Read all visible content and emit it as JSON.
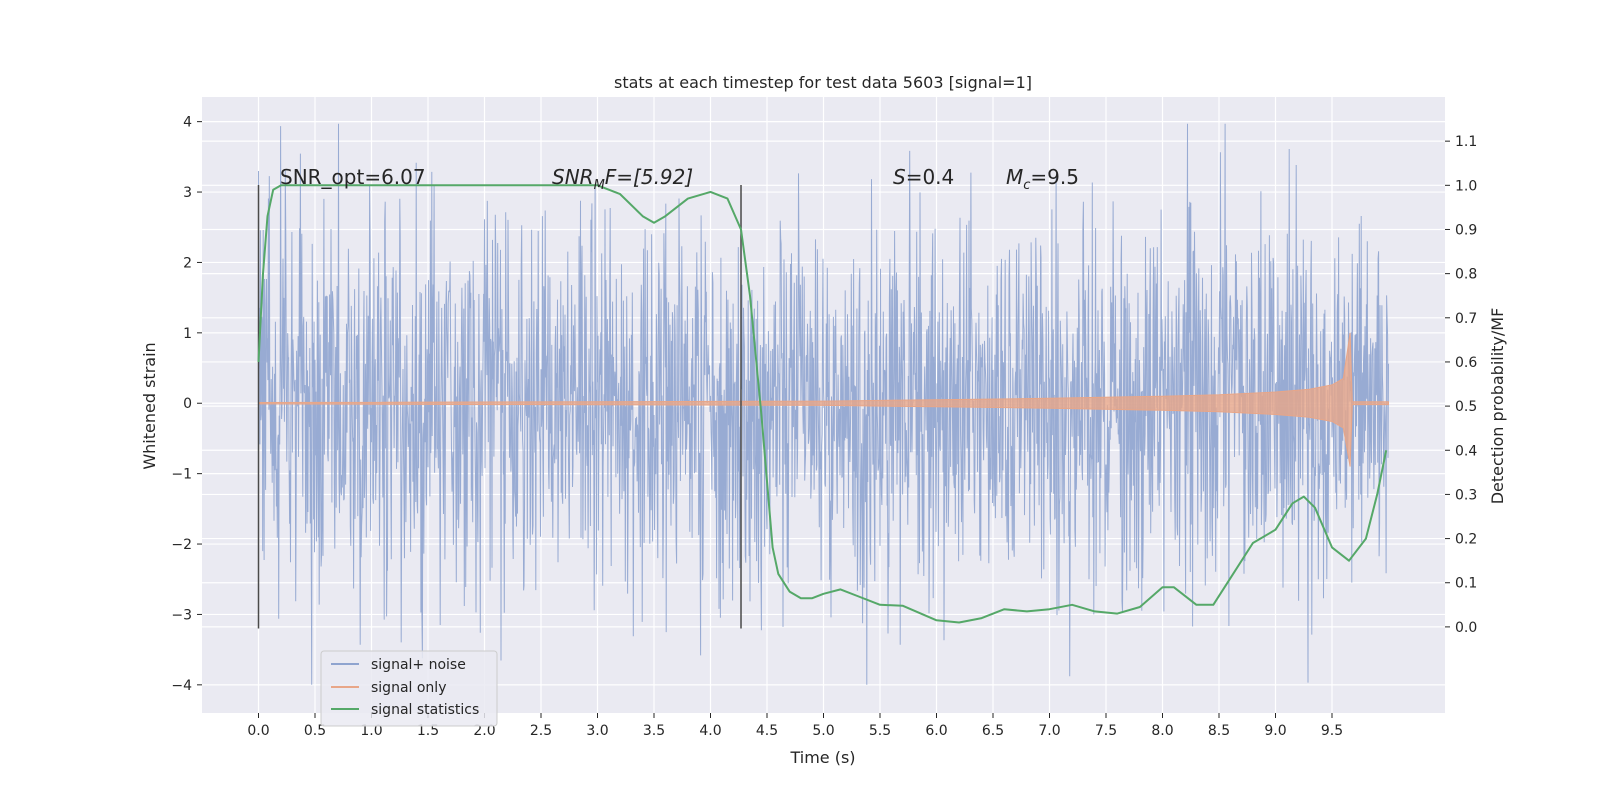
{
  "chart_data": {
    "type": "line",
    "title": "stats at each timestep for test data 5603 [signal=1]",
    "xlabel": "Time (s)",
    "ylabel_left": "Whitened strain",
    "ylabel_right": "Detection probability/MF",
    "xlim": [
      -0.5,
      10.5
    ],
    "ylim_left": [
      -4.4,
      4.35
    ],
    "ylim_right": [
      -0.195,
      1.2
    ],
    "x_ticks": [
      "0.0",
      "0.5",
      "1.0",
      "1.5",
      "2.0",
      "2.5",
      "3.0",
      "3.5",
      "4.0",
      "4.5",
      "5.0",
      "5.5",
      "6.0",
      "6.5",
      "7.0",
      "7.5",
      "8.0",
      "8.5",
      "9.0",
      "9.5"
    ],
    "y_left_ticks": [
      "4",
      "3",
      "2",
      "1",
      "0",
      "−1",
      "−2",
      "−3",
      "−4"
    ],
    "y_right_ticks": [
      "1.1",
      "1.0",
      "0.9",
      "0.8",
      "0.7",
      "0.6",
      "0.5",
      "0.4",
      "0.3",
      "0.2",
      "0.1",
      "0.0"
    ],
    "grid": true,
    "legend_position": "bottom-left",
    "annotations": {
      "snr_opt": "SNR_opt=6.07",
      "snr_mf_main": "SNR",
      "snr_mf_sub": "M",
      "snr_mf_rest": "F=[5.92]",
      "s_sym": "S",
      "s_val": "=0.4",
      "mc_sym": "M",
      "mc_sub": "c",
      "mc_val": "=9.5"
    },
    "vertical_markers_x": [
      0.0,
      4.27
    ],
    "series": [
      {
        "name": "signal+ noise",
        "axis": "left",
        "color": "#8fa4cf",
        "description_envelope": {
          "x_range": [
            0.0,
            10.0
          ],
          "typical_range": [
            -2.4,
            2.4
          ],
          "extreme_range": [
            -4.0,
            3.97
          ]
        }
      },
      {
        "name": "signal only",
        "axis": "left",
        "color": "#e8a688",
        "envelope_x": [
          0.0,
          5.0,
          6.0,
          7.0,
          8.0,
          8.5,
          9.0,
          9.3,
          9.5,
          9.6,
          9.66,
          9.68,
          10.0
        ],
        "envelope_y": [
          0.01,
          0.03,
          0.05,
          0.07,
          0.1,
          0.12,
          0.16,
          0.2,
          0.26,
          0.35,
          1.0,
          0.02,
          0.02
        ]
      },
      {
        "name": "signal statistics",
        "axis": "right",
        "color": "#55a868",
        "x": [
          0.0,
          0.04,
          0.08,
          0.13,
          0.2,
          0.5,
          1.0,
          2.0,
          3.0,
          3.2,
          3.4,
          3.5,
          3.6,
          3.8,
          4.0,
          4.15,
          4.27,
          4.35,
          4.45,
          4.55,
          4.6,
          4.7,
          4.8,
          4.9,
          5.0,
          5.15,
          5.3,
          5.5,
          5.7,
          6.0,
          6.2,
          6.4,
          6.6,
          6.8,
          7.0,
          7.2,
          7.4,
          7.6,
          7.8,
          8.0,
          8.1,
          8.3,
          8.45,
          8.6,
          8.8,
          9.0,
          9.15,
          9.25,
          9.35,
          9.5,
          9.65,
          9.8,
          9.9,
          9.98
        ],
        "y": [
          0.6,
          0.8,
          0.93,
          0.99,
          1.0,
          1.0,
          1.0,
          1.0,
          1.0,
          0.98,
          0.93,
          0.915,
          0.93,
          0.97,
          0.985,
          0.97,
          0.9,
          0.75,
          0.48,
          0.18,
          0.12,
          0.08,
          0.065,
          0.065,
          0.075,
          0.085,
          0.07,
          0.05,
          0.048,
          0.015,
          0.01,
          0.02,
          0.04,
          0.035,
          0.04,
          0.05,
          0.035,
          0.03,
          0.045,
          0.09,
          0.09,
          0.05,
          0.05,
          0.11,
          0.19,
          0.22,
          0.28,
          0.295,
          0.27,
          0.18,
          0.15,
          0.2,
          0.3,
          0.4
        ]
      }
    ]
  }
}
